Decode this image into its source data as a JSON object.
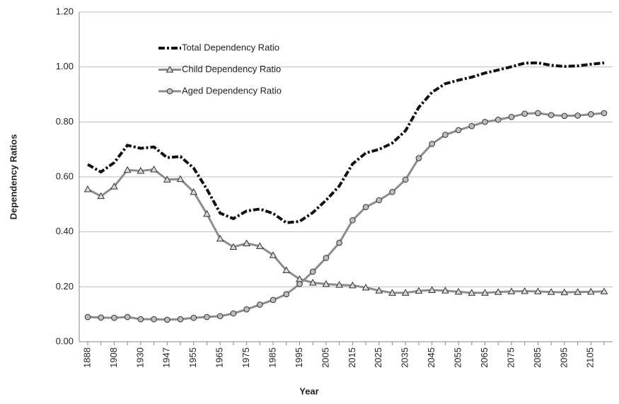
{
  "chart_data": {
    "type": "line",
    "y_label": "Dependency Ratios",
    "x_label": "Year",
    "categories": [
      "1888",
      null,
      "1908",
      null,
      "1930",
      null,
      "1947",
      null,
      "1955",
      null,
      "1965",
      null,
      "1975",
      null,
      "1985",
      null,
      "1995",
      null,
      "2005",
      null,
      "2015",
      null,
      "2025",
      null,
      "2035",
      null,
      "2045",
      null,
      "2055",
      null,
      "2065",
      null,
      "2075",
      null,
      "2085",
      null,
      "2095",
      null,
      "2105",
      null
    ],
    "series": [
      {
        "name": "Total Dependency Ratio",
        "color": "#111111",
        "dash": true,
        "marker": "none",
        "values": [
          0.645,
          0.618,
          0.652,
          0.715,
          0.704,
          0.709,
          0.67,
          0.674,
          0.632,
          0.555,
          0.468,
          0.448,
          0.476,
          0.483,
          0.467,
          0.433,
          0.438,
          0.47,
          0.515,
          0.567,
          0.647,
          0.687,
          0.7,
          0.723,
          0.768,
          0.853,
          0.908,
          0.939,
          0.952,
          0.963,
          0.978,
          0.989,
          1.001,
          1.014,
          1.015,
          1.006,
          1.002,
          1.004,
          1.01,
          1.015
        ]
      },
      {
        "name": "Child Dependency Ratio",
        "color": "#8c8c8c",
        "dash": false,
        "marker": "triangle",
        "values": [
          0.555,
          0.53,
          0.565,
          0.625,
          0.622,
          0.627,
          0.59,
          0.592,
          0.545,
          0.465,
          0.375,
          0.345,
          0.358,
          0.348,
          0.315,
          0.26,
          0.228,
          0.215,
          0.21,
          0.207,
          0.205,
          0.197,
          0.186,
          0.178,
          0.178,
          0.185,
          0.188,
          0.186,
          0.182,
          0.178,
          0.178,
          0.181,
          0.183,
          0.184,
          0.183,
          0.181,
          0.18,
          0.181,
          0.182,
          0.183
        ]
      },
      {
        "name": "Aged Dependency Ratio",
        "color": "#8c8c8c",
        "dash": false,
        "marker": "circle",
        "values": [
          0.09,
          0.088,
          0.087,
          0.09,
          0.082,
          0.082,
          0.08,
          0.082,
          0.087,
          0.09,
          0.093,
          0.103,
          0.118,
          0.135,
          0.152,
          0.173,
          0.21,
          0.255,
          0.305,
          0.36,
          0.442,
          0.49,
          0.515,
          0.545,
          0.59,
          0.668,
          0.72,
          0.753,
          0.77,
          0.785,
          0.8,
          0.808,
          0.818,
          0.83,
          0.832,
          0.825,
          0.822,
          0.823,
          0.828,
          0.832
        ]
      }
    ],
    "ylim": [
      0,
      1.2
    ],
    "yticks": [
      {
        "value": 0,
        "label": "0.00"
      },
      {
        "value": 0.2,
        "label": "0.20"
      },
      {
        "value": 0.4,
        "label": "0.40"
      },
      {
        "value": 0.6,
        "label": "0.60"
      },
      {
        "value": 0.8,
        "label": "0.80"
      },
      {
        "value": 1.0,
        "label": "1.00"
      },
      {
        "value": 1.2,
        "label": "1.20"
      }
    ],
    "grid": true,
    "legend": "upper-left"
  }
}
